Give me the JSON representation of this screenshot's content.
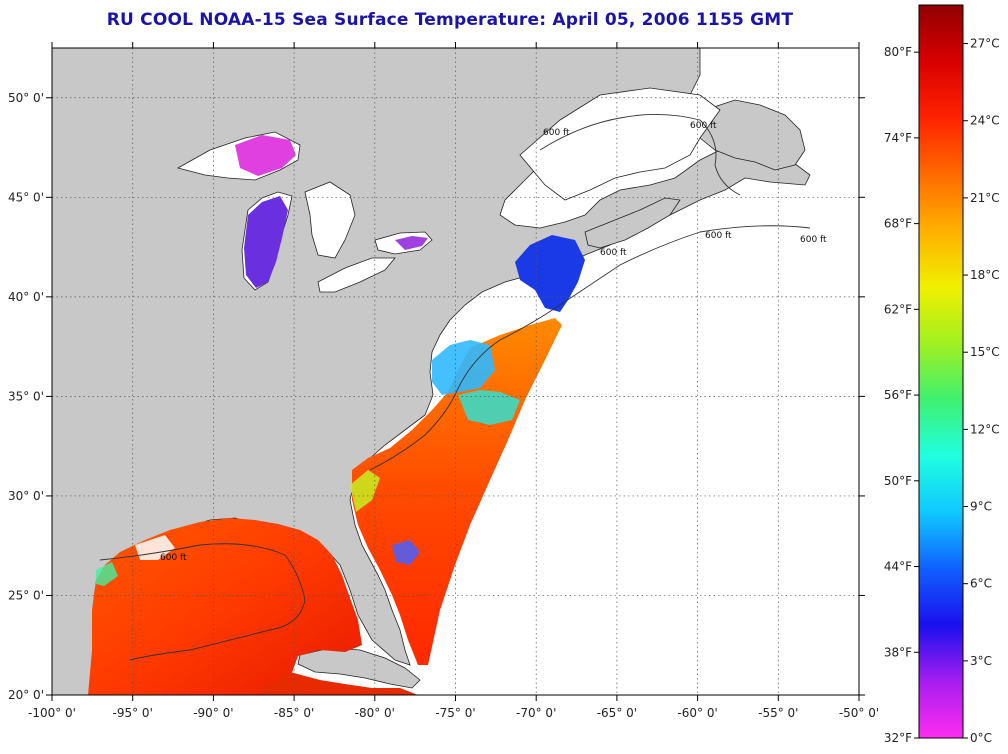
{
  "title": "RU COOL  NOAA-15  Sea Surface Temperature:  April 05, 2006 1155 GMT",
  "map": {
    "lon_range": [
      -100,
      -50
    ],
    "lat_range": [
      20,
      52.5
    ],
    "lon_labels": [
      "-100° 0'",
      "-95° 0'",
      "-90° 0'",
      "-85° 0'",
      "-80° 0'",
      "-75° 0'",
      "-70° 0'",
      "-65° 0'",
      "-60° 0'",
      "-55° 0'",
      "-50° 0'"
    ],
    "lat_labels": [
      "20° 0'",
      "25° 0'",
      "30° 0'",
      "35° 0'",
      "40° 0'",
      "45° 0'",
      "50° 0'"
    ],
    "contour_label": "600 ft",
    "land_color": "#c8c8c8",
    "no_data_color": "#ffffff"
  },
  "colorbar": {
    "fahrenheit_labels": [
      "80°F",
      "74°F",
      "68°F",
      "62°F",
      "56°F",
      "50°F",
      "44°F",
      "38°F",
      "32°F"
    ],
    "celsius_labels": [
      "27°C",
      "24°C",
      "21°C",
      "18°C",
      "15°C",
      "12°C",
      "9°C",
      "6°C",
      "3°C",
      "0°C"
    ],
    "min_c": 0,
    "max_c": 28.5,
    "stops": [
      "#ff2cf0",
      "#a61ef0",
      "#1a10ee",
      "#1060ff",
      "#10c8ff",
      "#20ffe0",
      "#40f070",
      "#a0f020",
      "#f0f000",
      "#ffb000",
      "#ff6a00",
      "#ff2200",
      "#d80000",
      "#900000"
    ]
  }
}
